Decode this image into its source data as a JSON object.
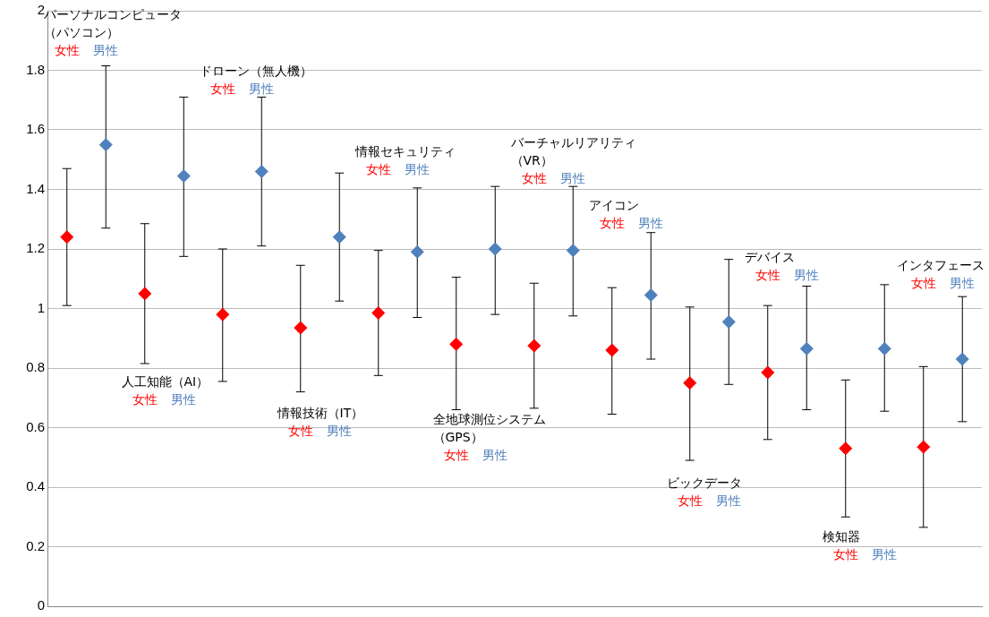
{
  "chart_data": {
    "type": "scatter",
    "categories": [
      null,
      null,
      null,
      null,
      null,
      null,
      null,
      null,
      null,
      null,
      null,
      null,
      null,
      null,
      null,
      null,
      null,
      null,
      null,
      null,
      null,
      null,
      null,
      null
    ],
    "series": [
      {
        "name": "女性",
        "color": "#ff0000",
        "values": [
          1.24,
          null,
          1.05,
          null,
          0.98,
          null,
          0.935,
          null,
          0.985,
          null,
          0.88,
          null,
          0.875,
          null,
          0.86,
          null,
          0.75,
          null,
          0.785,
          null,
          0.53,
          null,
          0.535,
          null
        ],
        "errors": [
          [
            1.01,
            1.47
          ],
          null,
          [
            0.815,
            1.285
          ],
          null,
          [
            0.755,
            1.2
          ],
          null,
          [
            0.72,
            1.145
          ],
          null,
          [
            0.775,
            1.195
          ],
          null,
          [
            0.66,
            1.105
          ],
          null,
          [
            0.665,
            1.085
          ],
          null,
          [
            0.645,
            1.07
          ],
          null,
          [
            0.49,
            1.005
          ],
          null,
          [
            0.56,
            1.01
          ],
          null,
          [
            0.3,
            0.76
          ],
          null,
          [
            0.265,
            0.805
          ],
          null
        ]
      },
      {
        "name": "男性",
        "color": "#4f81bd",
        "values": [
          null,
          1.55,
          null,
          1.445,
          null,
          1.46,
          null,
          1.24,
          null,
          1.19,
          null,
          1.2,
          null,
          1.195,
          null,
          1.045,
          null,
          0.955,
          null,
          0.865,
          null,
          0.865,
          null,
          0.83
        ],
        "errors": [
          null,
          [
            1.27,
            1.815
          ],
          null,
          [
            1.175,
            1.71
          ],
          null,
          [
            1.21,
            1.71
          ],
          null,
          [
            1.025,
            1.455
          ],
          null,
          [
            0.97,
            1.405
          ],
          null,
          [
            0.98,
            1.41
          ],
          null,
          [
            0.975,
            1.41
          ],
          null,
          [
            0.83,
            1.255
          ],
          null,
          [
            0.745,
            1.165
          ],
          null,
          [
            0.66,
            1.075
          ],
          null,
          [
            0.655,
            1.08
          ],
          null,
          [
            0.62,
            1.04
          ]
        ]
      }
    ],
    "ylim": [
      0,
      2
    ],
    "yticks": [
      0,
      0.2,
      0.4,
      0.6,
      0.8,
      1,
      1.2,
      1.4,
      1.6,
      1.8,
      2
    ],
    "grid": "y",
    "legend": false,
    "marker": "diamond",
    "tick_labels": "y",
    "annotations": [
      "パーソナルコンピュータ（パソコン）",
      "人工知能（AI）",
      "ドローン（無人機）",
      "情報技術（IT）",
      "情報セキュリティ",
      "全地球測位システム（GPS）",
      "バーチャルリアリティ（VR）",
      "アイコン",
      "ビックデータ",
      "デバイス",
      "検知器",
      "インタフェース"
    ]
  }
}
